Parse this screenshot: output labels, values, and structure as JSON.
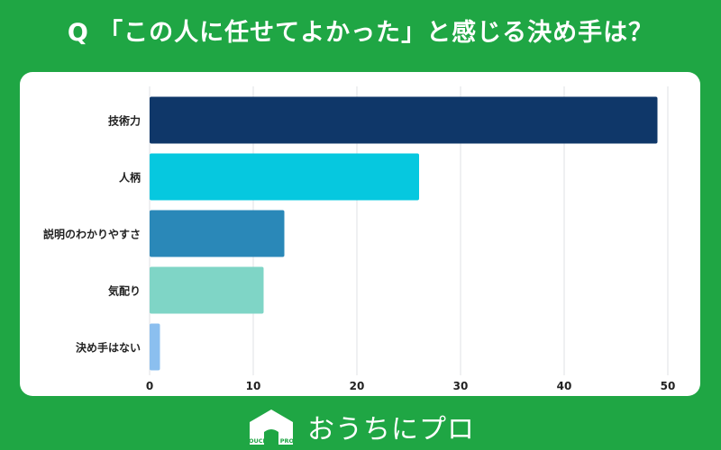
{
  "title": "Q 「この人に任せてよかった」と感じる決め手は？",
  "chart_data": {
    "type": "bar",
    "orientation": "horizontal",
    "categories": [
      "技術力",
      "人柄",
      "説明のわかりやすさ",
      "気配り",
      "決め手はない"
    ],
    "values": [
      49,
      26,
      13,
      11,
      1
    ],
    "colors": [
      "#0f3769",
      "#06c8df",
      "#2a88b8",
      "#7fd5c6",
      "#8bbfef"
    ],
    "xlim": [
      0,
      50
    ],
    "xticks": [
      0,
      10,
      20,
      30,
      40,
      50
    ],
    "grid": true
  },
  "footer": {
    "brand": "おうちにプロ",
    "logo_text": "OUCHI ni PRO",
    "logo_icon": "house-icon"
  }
}
